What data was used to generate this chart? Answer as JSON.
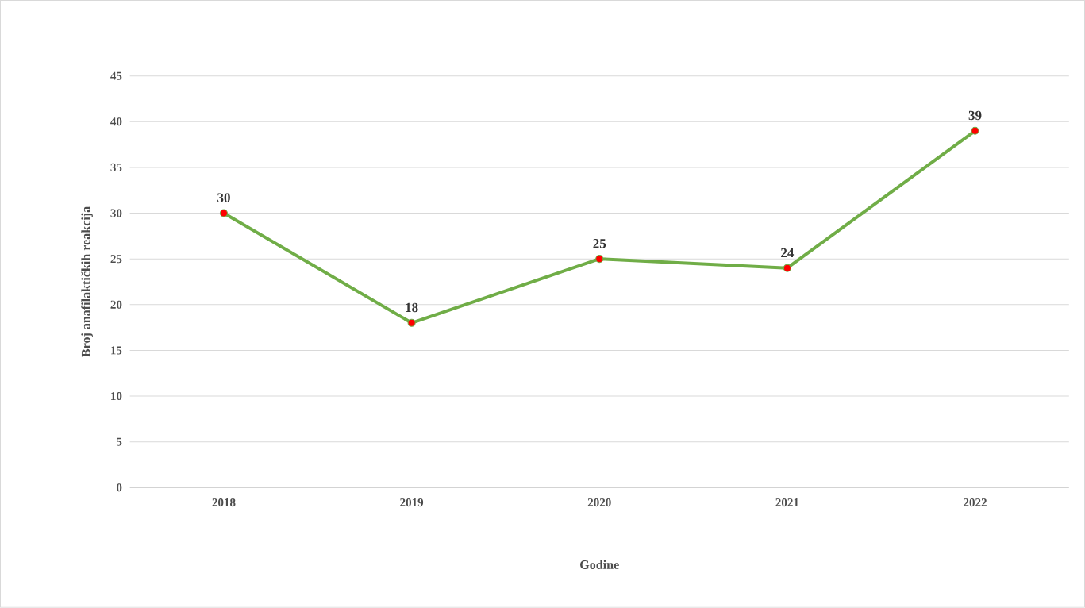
{
  "chart_data": {
    "type": "line",
    "xlabel": "Godine",
    "ylabel": "Broj anafilaktičkih reakcija",
    "categories": [
      "2018",
      "2019",
      "2020",
      "2021",
      "2022"
    ],
    "series": [
      {
        "color": "#70ad47",
        "values": [
          30,
          18,
          25,
          24,
          39
        ]
      }
    ],
    "ylim": [
      0,
      45
    ],
    "yticks": [
      0,
      5,
      10,
      15,
      20,
      25,
      30,
      35,
      40,
      45
    ],
    "grid": "y",
    "marker": "circle",
    "line_style": "solid",
    "data_labels": true
  }
}
